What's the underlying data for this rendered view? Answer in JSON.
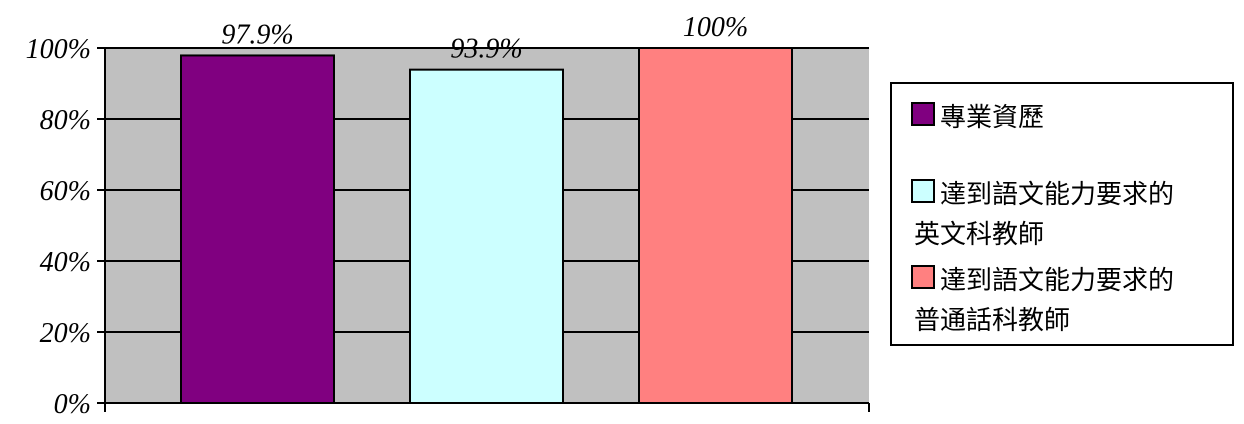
{
  "chart_data": {
    "type": "bar",
    "title": "",
    "xlabel": "",
    "ylabel": "",
    "ylim": [
      0,
      100
    ],
    "y_ticks": [
      "0%",
      "20%",
      "40%",
      "60%",
      "80%",
      "100%"
    ],
    "y_tick_values": [
      0,
      20,
      40,
      60,
      80,
      100
    ],
    "grid": true,
    "legend_position": "right",
    "plot_background": "#c0c0c0",
    "series": [
      {
        "name": "專業資歷",
        "value": 97.9,
        "label": "97.9%",
        "color": "#800080",
        "legend_lines": [
          "專業資歷"
        ]
      },
      {
        "name": "達到語文能力要求的英文科教師",
        "value": 93.9,
        "label": "93.9%",
        "color": "#ccffff",
        "legend_lines": [
          "達到語文能力要求的",
          "英文科教師"
        ]
      },
      {
        "name": "達到語文能力要求的普通話科教師",
        "value": 100,
        "label": "100%",
        "color": "#ff8080",
        "legend_lines": [
          "達到語文能力要求的",
          "普通話科教師"
        ]
      }
    ]
  }
}
